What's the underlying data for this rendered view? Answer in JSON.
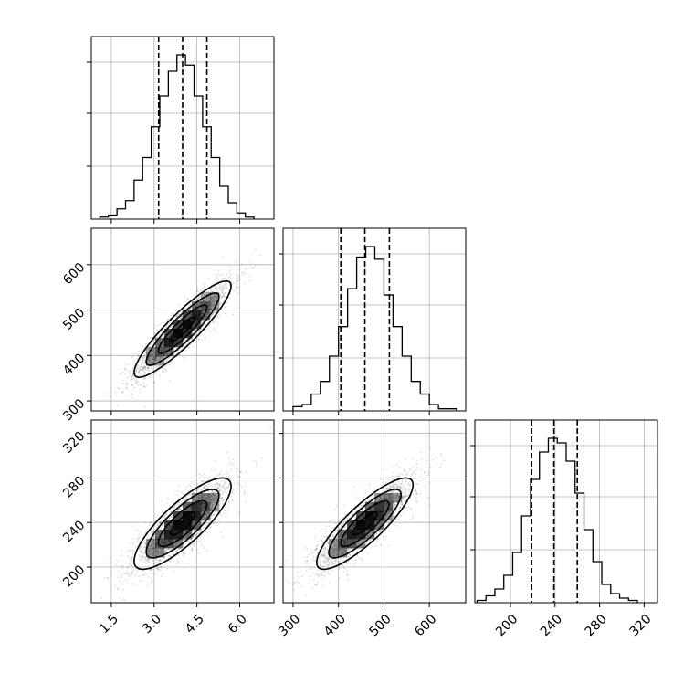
{
  "chart_data": {
    "type": "corner",
    "params": [
      {
        "ticks": [
          1.5,
          3.0,
          4.5,
          6.0
        ],
        "tick_labels": [
          "1.5",
          "3.0",
          "4.5",
          "6.0"
        ],
        "range": [
          0.8,
          7.2
        ]
      },
      {
        "ticks": [
          300,
          400,
          500,
          600
        ],
        "tick_labels": [
          "300",
          "400",
          "500",
          "600"
        ],
        "range": [
          278,
          680
        ]
      },
      {
        "ticks": [
          200,
          240,
          280,
          320
        ],
        "tick_labels": [
          "200",
          "240",
          "280",
          "320"
        ],
        "range": [
          168,
          332
        ]
      }
    ],
    "histograms": [
      {
        "param": 0,
        "bin_edges": [
          1.1,
          1.4,
          1.7,
          2.0,
          2.3,
          2.6,
          2.9,
          3.2,
          3.5,
          3.8,
          4.1,
          4.4,
          4.7,
          5.0,
          5.3,
          5.6,
          5.9,
          6.2,
          6.5
        ],
        "counts": [
          1,
          2,
          5,
          9,
          19,
          30,
          45,
          60,
          72,
          80,
          75,
          60,
          45,
          30,
          16,
          8,
          3,
          1
        ],
        "quantiles": [
          3.16,
          4.0,
          4.85
        ]
      },
      {
        "param": 1,
        "bin_edges": [
          300,
          320,
          340,
          360,
          380,
          400,
          420,
          440,
          460,
          480,
          500,
          520,
          540,
          560,
          580,
          600,
          620,
          640,
          660
        ],
        "counts": [
          2,
          3,
          8,
          14,
          26,
          40,
          58,
          73,
          78,
          72,
          55,
          40,
          26,
          14,
          8,
          3,
          1,
          1
        ],
        "quantiles": [
          405,
          458,
          512
        ]
      },
      {
        "param": 2,
        "bin_edges": [
          170,
          178,
          186,
          194,
          202,
          210,
          218,
          226,
          234,
          242,
          250,
          258,
          266,
          274,
          282,
          290,
          298,
          306,
          314
        ],
        "counts": [
          1,
          3,
          6,
          12,
          22,
          38,
          54,
          66,
          72,
          70,
          62,
          48,
          32,
          18,
          8,
          4,
          2,
          1
        ],
        "quantiles": [
          219,
          239,
          260
        ]
      }
    ],
    "joints": [
      {
        "x_param": 0,
        "y_param": 1,
        "mean": [
          4.0,
          458
        ],
        "sd": [
          0.85,
          53
        ],
        "corr": 0.9
      },
      {
        "x_param": 0,
        "y_param": 2,
        "mean": [
          4.0,
          239
        ],
        "sd": [
          0.85,
          20.5
        ],
        "corr": 0.82
      },
      {
        "x_param": 1,
        "y_param": 2,
        "mean": [
          458,
          239
        ],
        "sd": [
          53,
          20.5
        ],
        "corr": 0.85
      }
    ],
    "contour_levels_sigma": [
      0.5,
      1.0,
      1.5,
      2.0
    ],
    "grid": true
  }
}
